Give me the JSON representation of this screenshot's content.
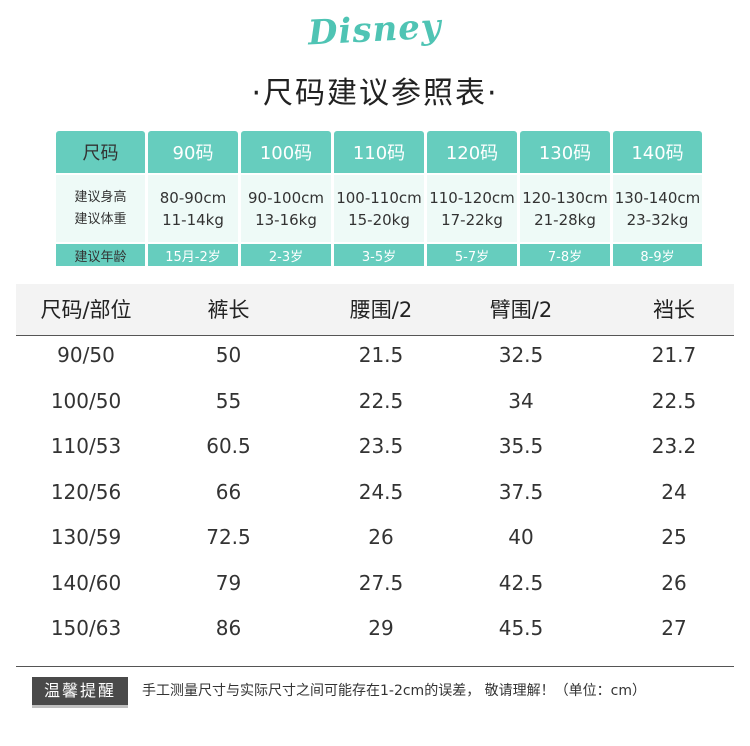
{
  "brand": {
    "logo_text": "Disney"
  },
  "title": "·尺码建议参照表·",
  "suggestion": {
    "label_col": {
      "size": "尺码",
      "height": "建议身高",
      "weight": "建议体重",
      "age": "建议年龄"
    },
    "columns": [
      {
        "size": "90码",
        "height": "80-90cm",
        "weight": "11-14kg",
        "age": "15月-2岁"
      },
      {
        "size": "100码",
        "height": "90-100cm",
        "weight": "13-16kg",
        "age": "2-3岁"
      },
      {
        "size": "110码",
        "height": "100-110cm",
        "weight": "15-20kg",
        "age": "3-5岁"
      },
      {
        "size": "120码",
        "height": "110-120cm",
        "weight": "17-22kg",
        "age": "5-7岁"
      },
      {
        "size": "130码",
        "height": "120-130cm",
        "weight": "21-28kg",
        "age": "7-8岁"
      },
      {
        "size": "140码",
        "height": "130-140cm",
        "weight": "23-32kg",
        "age": "8-9岁"
      }
    ]
  },
  "table": {
    "headers": [
      "尺码/部位",
      "裤长",
      "腰围/2",
      "臂围/2",
      "裆长"
    ],
    "rows": [
      [
        "90/50",
        "50",
        "21.5",
        "32.5",
        "21.7"
      ],
      [
        "100/50",
        "55",
        "22.5",
        "34",
        "22.5"
      ],
      [
        "110/53",
        "60.5",
        "23.5",
        "35.5",
        "23.2"
      ],
      [
        "120/56",
        "66",
        "24.5",
        "37.5",
        "24"
      ],
      [
        "130/59",
        "72.5",
        "26",
        "40",
        "25"
      ],
      [
        "140/60",
        "79",
        "27.5",
        "42.5",
        "26"
      ],
      [
        "150/63",
        "86",
        "29",
        "45.5",
        "27"
      ]
    ]
  },
  "note": {
    "badge": "温馨提醒",
    "text": "手工测量尺寸与实际尺寸之间可能存在1-2cm的误差，  敬请理解！（单位：cm）"
  },
  "colors": {
    "accent": "#66cdbe",
    "light": "#eefaf7",
    "badge": "#4a4a4a"
  }
}
